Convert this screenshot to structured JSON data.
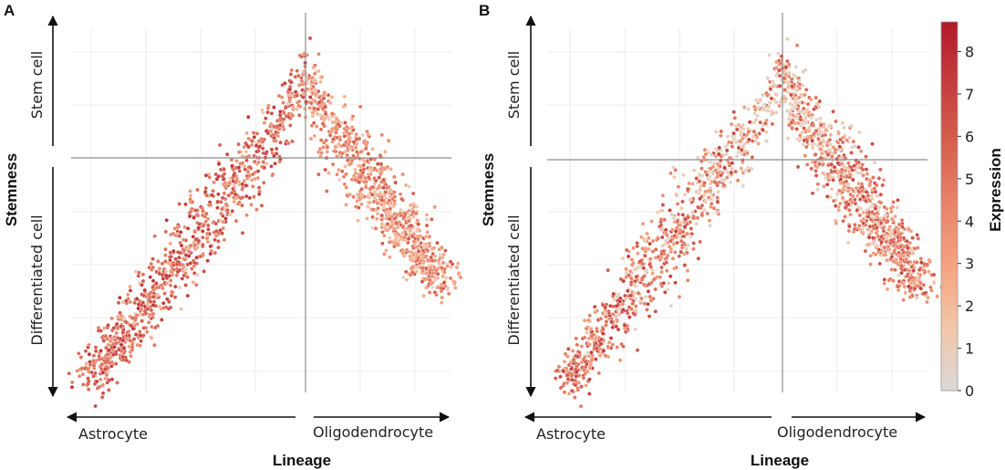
{
  "figure": {
    "panels": [
      {
        "letter": "A",
        "y_axis_title": "Stemness",
        "y_top_label": "Stem cell",
        "y_bottom_label": "Differentiated cell",
        "x_axis_title": "Lineage",
        "x_left_label": "Astrocyte",
        "x_right_label": "Oligodendrocyte"
      },
      {
        "letter": "B",
        "y_axis_title": "Stemness",
        "y_top_label": "Stem cell",
        "y_bottom_label": "Differentiated cell",
        "x_axis_title": "Lineage",
        "x_left_label": "Astrocyte",
        "x_right_label": "Oligodendrocyte"
      }
    ],
    "colorbar": {
      "title": "Expression",
      "min": 0,
      "max": 8.7,
      "ticks": [
        "0",
        "1",
        "2",
        "3",
        "4",
        "5",
        "6",
        "7",
        "8"
      ],
      "colors": [
        "#d9d9d9",
        "#f3c6a8",
        "#f4a582",
        "#e8856a",
        "#d6604d",
        "#c43c3c",
        "#b2182b"
      ]
    }
  },
  "chart_data": [
    {
      "type": "scatter",
      "title": "A",
      "xlabel": "Lineage",
      "ylabel": "Stemness",
      "xlim": [
        -1,
        1
      ],
      "ylim": [
        -1,
        1
      ],
      "x_direction_labels": [
        "Astrocyte",
        "Oligodendrocyte"
      ],
      "y_direction_labels": [
        "Differentiated cell",
        "Stem cell"
      ],
      "crosshair": {
        "x": 0,
        "y": 0.4
      },
      "shape": "inverted-V: points rise from the lower-left (astrocyte branch) to a peak near x=0, y=0.95, then fall to the lower-right (oligodendrocyte branch)",
      "peak": {
        "x": 0.0,
        "y": 0.95
      },
      "astrocyte_branch_end": {
        "x": -0.92,
        "y": -0.9
      },
      "oligodendrocyte_branch_end": {
        "x": 0.9,
        "y": -0.35
      },
      "n_points_approx": 2600,
      "color_by": "Expression",
      "color_pattern": "high expression (dark red) along the astrocyte branch, mixed light/orange near the top and oligodendrocyte branch"
    },
    {
      "type": "scatter",
      "title": "B",
      "xlabel": "Lineage",
      "ylabel": "Stemness",
      "xlim": [
        -1,
        1
      ],
      "ylim": [
        -1,
        1
      ],
      "x_direction_labels": [
        "Astrocyte",
        "Oligodendrocyte"
      ],
      "y_direction_labels": [
        "Differentiated cell",
        "Stem cell"
      ],
      "crosshair": {
        "x": 0,
        "y": 0.4
      },
      "shape": "inverted-V: points rise from the lower-left (astrocyte branch) to a peak near x=0, y=0.95, then fall to the lower-right (oligodendrocyte branch)",
      "peak": {
        "x": 0.0,
        "y": 0.95
      },
      "astrocyte_branch_end": {
        "x": -0.92,
        "y": -0.9
      },
      "oligodendrocyte_branch_end": {
        "x": 0.9,
        "y": -0.35
      },
      "n_points_approx": 2600,
      "color_by": "Expression",
      "color_pattern": "grey (low expression) concentrated near the stem-cell peak, red along the astrocyte branch and the oligodendrocyte branch"
    }
  ]
}
